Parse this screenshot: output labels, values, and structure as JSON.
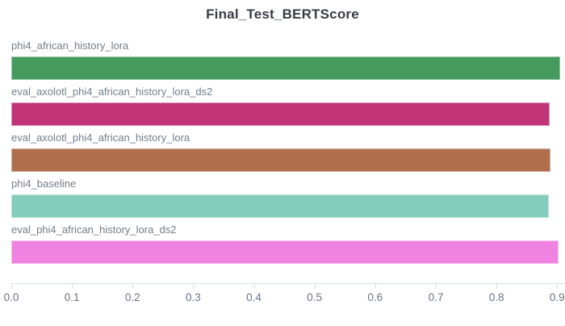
{
  "title": "Final_Test_BERTScore",
  "colors": {
    "background": "#ffffff",
    "title_text": "#373c44",
    "bar_label_text": "#717e8a",
    "tick_label_text": "#677284",
    "axis_line": "#d8dde3"
  },
  "chart_data": {
    "type": "bar",
    "orientation": "horizontal",
    "title": "Final_Test_BERTScore",
    "xlabel": "",
    "ylabel": "",
    "grid": false,
    "legend": false,
    "xlim": [
      0,
      0.913
    ],
    "x_tick_values": [
      0,
      0.1,
      0.2,
      0.3,
      0.4,
      0.5,
      0.6,
      0.7,
      0.8,
      0.9
    ],
    "x_tick_labels": [
      "0.0",
      "0.1",
      "0.2",
      "0.3",
      "0.4",
      "0.5",
      "0.6",
      "0.7",
      "0.8",
      "0.9"
    ],
    "categories": [
      "phi4_african_history_lora",
      "eval_axolotl_phi4_african_history_lora_ds2",
      "eval_axolotl_phi4_african_history_lora",
      "phi4_baseline",
      "eval_phi4_african_history_lora_ds2"
    ],
    "values": [
      0.905,
      0.888,
      0.889,
      0.886,
      0.902
    ],
    "bar_colors": [
      "#459a5e",
      "#c03377",
      "#b06e4c",
      "#84ccbb",
      "#f083e2"
    ],
    "bar_border_colors": [
      "#90c5a2",
      "#da8ab6",
      "#d2ab96",
      "#b9e2d8",
      "#f7bcef"
    ]
  }
}
